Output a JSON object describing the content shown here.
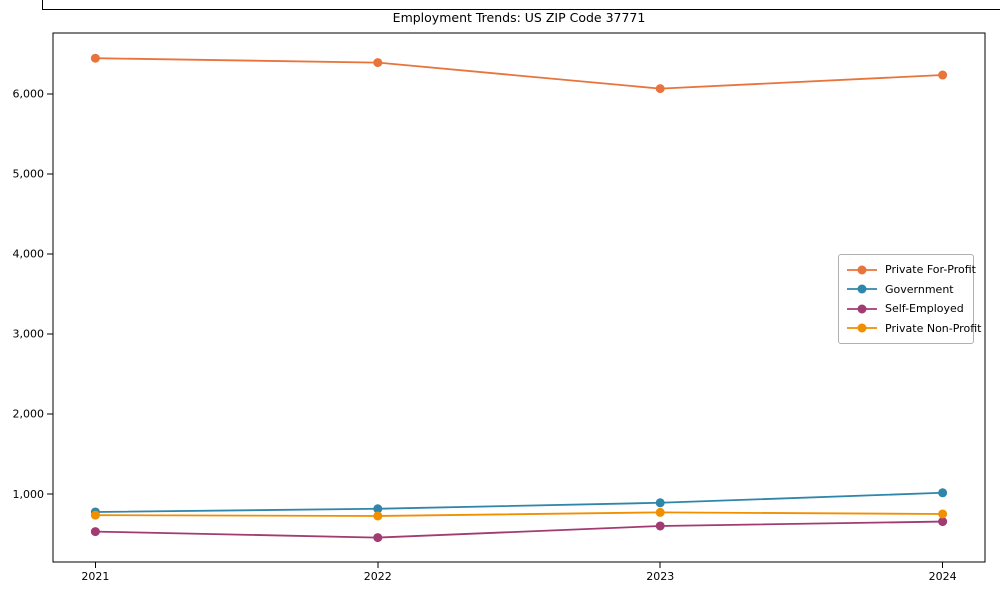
{
  "chart_data": {
    "type": "line",
    "title": "Employment Trends: US ZIP Code 37771",
    "xlabel": "",
    "ylabel": "",
    "x": [
      2021,
      2022,
      2023,
      2024
    ],
    "x_tick_labels": [
      "2021",
      "2022",
      "2023",
      "2024"
    ],
    "y_ticks": [
      1000,
      2000,
      3000,
      4000,
      5000,
      6000
    ],
    "y_tick_labels": [
      "1,000",
      "2,000",
      "3,000",
      "4,000",
      "5,000",
      "6,000"
    ],
    "xlim": [
      2020.85,
      2024.15
    ],
    "ylim": [
      150,
      6760
    ],
    "grid": false,
    "legend_position": "center-right",
    "legend_border_color": "#b0b0b0",
    "axis_color": "#000000",
    "background_color": "#ffffff",
    "marker": "circle",
    "series": [
      {
        "name": "Private For-Profit",
        "color": "#E8743B",
        "values": [
          6445,
          6390,
          6065,
          6235
        ]
      },
      {
        "name": "Government",
        "color": "#2E86AB",
        "values": [
          775,
          815,
          890,
          1015
        ]
      },
      {
        "name": "Self-Employed",
        "color": "#A23B72",
        "values": [
          530,
          455,
          600,
          655
        ]
      },
      {
        "name": "Private Non-Profit",
        "color": "#F18F01",
        "values": [
          735,
          725,
          770,
          750
        ]
      }
    ]
  }
}
